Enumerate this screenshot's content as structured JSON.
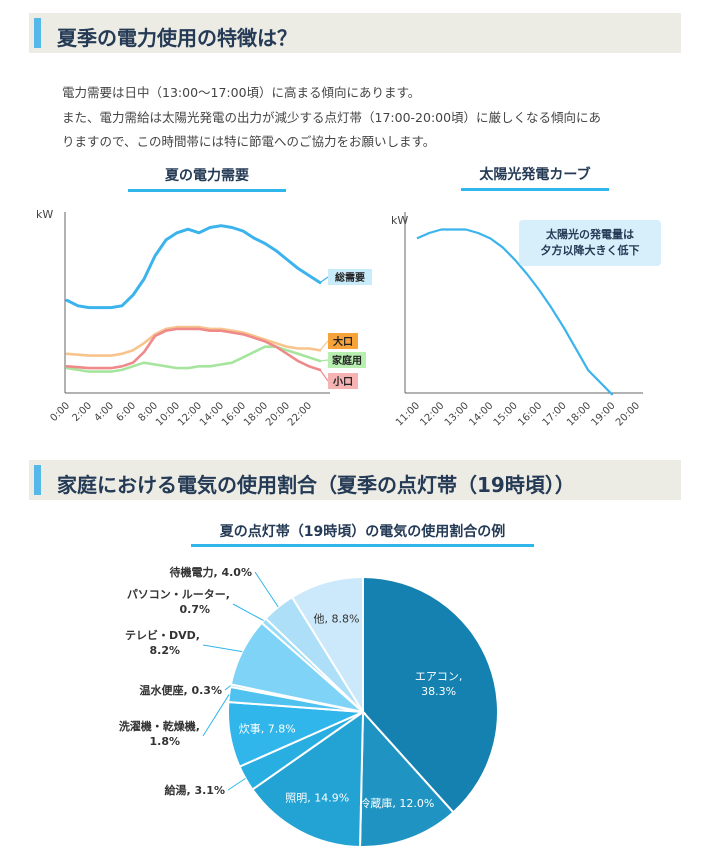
{
  "section1": {
    "title": "夏季の電力使用の特徴は？",
    "paragraph_lines": [
      "電力需要は日中（13:00〜17:00頃）に高まる傾向にあります。",
      "また、電力需給は太陽光発電の出力が減少する点灯帯（17:00-20:00頃）に厳しくなる傾向にあ",
      "りますので、この時間帯には特に節電へのご協力をお願いします。"
    ]
  },
  "section2": {
    "title": "家庭における電気の使用割合（夏季の点灯帯（19時頃））"
  },
  "colors": {
    "header_bg": "#ecebe4",
    "accent": "#55b8e8",
    "heading_text": "#243a55",
    "total_demand": "#3bb3ec",
    "large": "#f7c48c",
    "household": "#a6e59d",
    "small": "#f08a8a"
  },
  "chart_data": [
    {
      "type": "line",
      "title": "夏の電力需要",
      "ylabel": "kW",
      "x_ticks": [
        "0:00",
        "2:00",
        "4:00",
        "6:00",
        "8:00",
        "10:00",
        "12:00",
        "14:00",
        "16:00",
        "18:00",
        "20:00",
        "22:00"
      ],
      "x_hours": [
        0,
        1,
        2,
        3,
        4,
        5,
        6,
        7,
        8,
        9,
        10,
        11,
        12,
        13,
        14,
        15,
        16,
        17,
        18,
        19,
        20,
        21,
        22,
        23
      ],
      "ylim": [
        0,
        100
      ],
      "series": [
        {
          "name": "総需要",
          "color": "#3bb3ec",
          "badge_color": "#c9ecfa",
          "values": [
            52,
            49,
            48,
            48,
            48,
            49,
            55,
            64,
            77,
            86,
            90,
            92,
            90,
            93,
            94,
            93,
            91,
            87,
            84,
            80,
            75,
            70,
            66,
            62
          ]
        },
        {
          "name": "大口",
          "color": "#f7c48c",
          "badge_color": "#f5a33a",
          "values": [
            22,
            21.5,
            21,
            21,
            21,
            22,
            24,
            28,
            33,
            36,
            37,
            37,
            37,
            36,
            36,
            35,
            34,
            32,
            30,
            28,
            26,
            25,
            25,
            24
          ]
        },
        {
          "name": "家庭用",
          "color": "#a6e59d",
          "badge_color": "#b8eeb0",
          "values": [
            14,
            13,
            12,
            12,
            12,
            13,
            15,
            17,
            16,
            15,
            14,
            14,
            15,
            15,
            16,
            17,
            20,
            23,
            26,
            26,
            24,
            22,
            20,
            18
          ]
        },
        {
          "name": "小口",
          "color": "#f08a8a",
          "badge_color": "#f6b3b3",
          "values": [
            15,
            14.5,
            14,
            14,
            14,
            15,
            17,
            23,
            32,
            35,
            36,
            36,
            36,
            35,
            35,
            34,
            33,
            31,
            29,
            26,
            22,
            18,
            15,
            13
          ]
        }
      ]
    },
    {
      "type": "line",
      "title": "太陽光発電カーブ",
      "ylabel": "kW",
      "annotation": [
        "太陽光の発電量は",
        "夕方以降大きく低下"
      ],
      "x_ticks": [
        "11:00",
        "12:00",
        "13:00",
        "14:00",
        "15:00",
        "16:00",
        "17:00",
        "18:00",
        "19:00",
        "20:00"
      ],
      "series": [
        {
          "name": "",
          "color": "#3bb3ec",
          "x": [
            "11:00",
            "11:30",
            "12:00",
            "12:30",
            "13:00",
            "13:30",
            "14:00",
            "14:30",
            "15:00",
            "15:30",
            "16:00",
            "16:30",
            "17:00",
            "17:30",
            "18:00",
            "18:30",
            "19:00"
          ],
          "values": [
            88,
            91,
            93,
            93,
            93,
            91,
            88,
            83,
            76,
            68,
            59,
            49,
            38,
            26,
            14,
            7,
            0
          ]
        }
      ],
      "ylim": [
        0,
        100
      ]
    },
    {
      "type": "pie",
      "title": "夏の点灯帯（19時頃）の電気の使用割合の例",
      "slices": [
        {
          "label": "エアコン",
          "value": 38.3,
          "display": "38.3%",
          "color": "#1481b0",
          "label_color": "#ffffff"
        },
        {
          "label": "冷蔵庫",
          "value": 12.0,
          "display": "12.0%",
          "color": "#1f94c3",
          "label_color": "#ffffff"
        },
        {
          "label": "照明",
          "value": 14.9,
          "display": "14.9%",
          "color": "#23a2d4",
          "label_color": "#ffffff"
        },
        {
          "label": "給湯",
          "value": 3.1,
          "display": "3.1%",
          "color": "#29aee1",
          "label_color": "#333333"
        },
        {
          "label": "炊事",
          "value": 7.8,
          "display": "7.8%",
          "color": "#30b6eb",
          "label_color": "#ffffff"
        },
        {
          "label": "洗濯機・乾燥機",
          "value": 1.8,
          "display": "1.8%",
          "color": "#4fc2f0",
          "label_color": "#333333"
        },
        {
          "label": "温水便座",
          "value": 0.3,
          "display": "0.3%",
          "color": "#6ccdf3",
          "label_color": "#333333"
        },
        {
          "label": "テレビ・DVD",
          "value": 8.2,
          "display": "8.2%",
          "color": "#7fd3f6",
          "label_color": "#333333"
        },
        {
          "label": "パソコン・ルーター",
          "value": 0.7,
          "display": "0.7%",
          "color": "#98dcf8",
          "label_color": "#333333"
        },
        {
          "label": "待機電力",
          "value": 4.0,
          "display": "4.0%",
          "color": "#addff8",
          "label_color": "#333333"
        },
        {
          "label": "他",
          "value": 8.8,
          "display": "8.8%",
          "color": "#cbe9fb",
          "label_color": "#333333"
        }
      ]
    }
  ]
}
